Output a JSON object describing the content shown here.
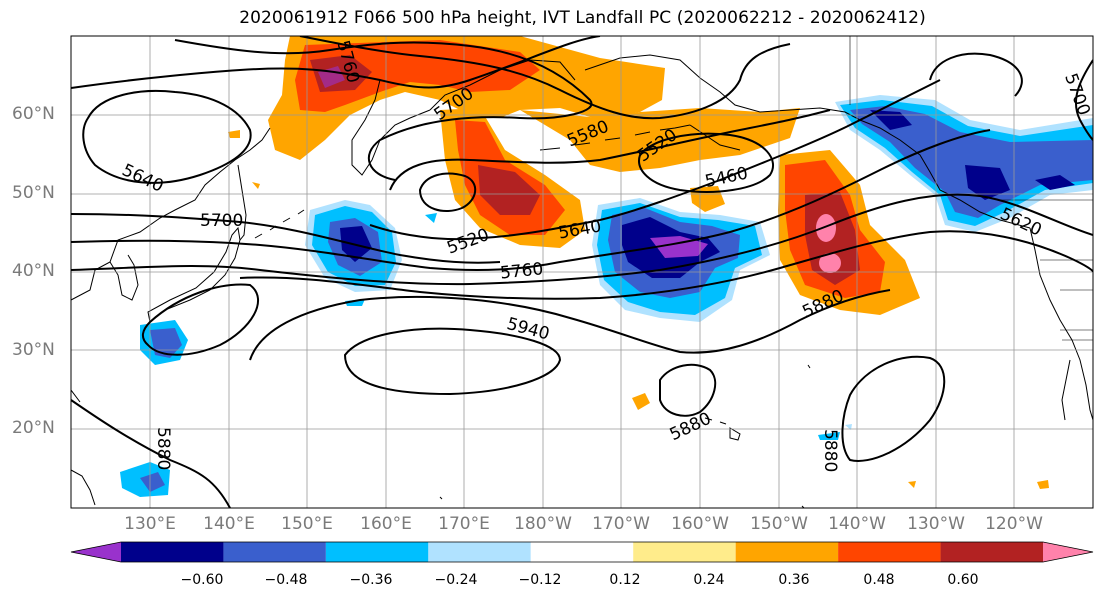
{
  "title": "2020061912 F066 500 hPa height, IVT Landfall PC (2020062212 - 2020062412)",
  "lat_labels": [
    "60°N",
    "50°N",
    "40°N",
    "30°N",
    "20°N"
  ],
  "lon_labels": [
    "130°E",
    "140°E",
    "150°E",
    "160°E",
    "170°E",
    "180°W",
    "170°W",
    "160°W",
    "150°W",
    "140°W",
    "130°W",
    "120°W"
  ],
  "contour_labels": [
    "5760",
    "5700",
    "5580",
    "5520",
    "5640",
    "5460",
    "5700",
    "5520",
    "5640",
    "5760",
    "5620",
    "5880",
    "5940",
    "5880",
    "5880",
    "5880",
    "5700"
  ],
  "colorbar": {
    "ticks": [
      "−0.60",
      "−0.48",
      "−0.36",
      "−0.24",
      "−0.12",
      "0.12",
      "0.24",
      "0.36",
      "0.48",
      "0.60"
    ],
    "colors": [
      "#9932cc",
      "#00008b",
      "#3a5fcd",
      "#00bfff",
      "#b0e2ff",
      "#ffffff",
      "#ffec8b",
      "#ffa500",
      "#ff4500",
      "#b22222",
      "#ff82ab"
    ]
  }
}
